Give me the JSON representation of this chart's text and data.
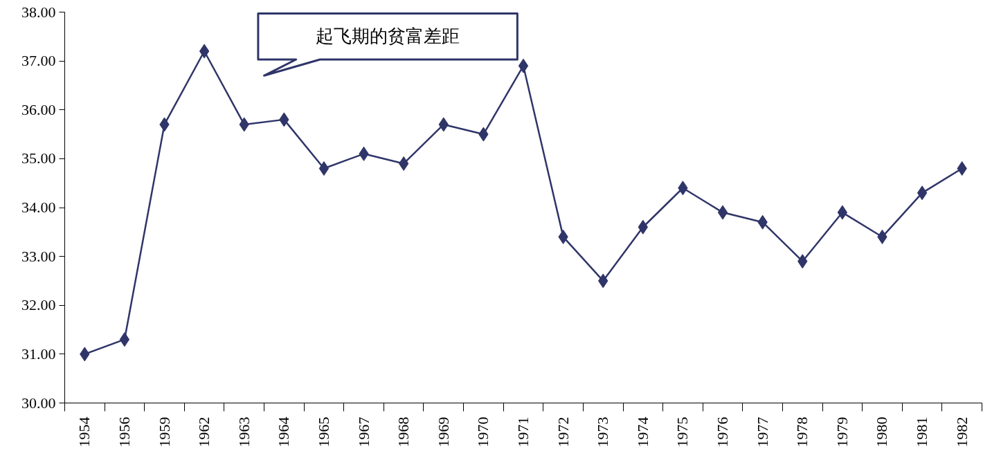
{
  "chart_data": {
    "type": "line",
    "categories": [
      "1954",
      "1956",
      "1959",
      "1962",
      "1963",
      "1964",
      "1965",
      "1967",
      "1968",
      "1969",
      "1970",
      "1971",
      "1972",
      "1973",
      "1974",
      "1975",
      "1976",
      "1977",
      "1978",
      "1979",
      "1980",
      "1981",
      "1982"
    ],
    "series": [
      {
        "color": "#2f3568",
        "values": [
          31.0,
          31.3,
          35.7,
          37.2,
          35.7,
          35.8,
          34.8,
          35.1,
          34.9,
          35.7,
          35.5,
          36.9,
          33.4,
          32.5,
          33.6,
          34.4,
          33.9,
          33.7,
          32.9,
          33.9,
          33.4,
          34.3,
          34.8
        ]
      }
    ],
    "ylim": [
      30,
      38
    ],
    "yticks": [
      {
        "value": 30,
        "label": "30.00"
      },
      {
        "value": 31,
        "label": "31.00"
      },
      {
        "value": 32,
        "label": "32.00"
      },
      {
        "value": 33,
        "label": "33.00"
      },
      {
        "value": 34,
        "label": "34.00"
      },
      {
        "value": 35,
        "label": "35.00"
      },
      {
        "value": 36,
        "label": "36.00"
      },
      {
        "value": 37,
        "label": "37.00"
      },
      {
        "value": 38,
        "label": "38.00"
      }
    ],
    "annotations": [
      "起飞期的贫富差距"
    ],
    "marker": "diamond",
    "line_style": "solid",
    "grid": false
  }
}
